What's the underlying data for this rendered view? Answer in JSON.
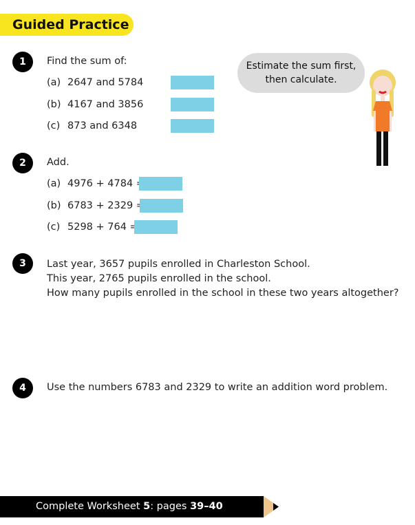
{
  "header": {
    "title": "Guided Practice"
  },
  "speech_bubble": {
    "line1": "Estimate the sum first,",
    "line2": "then calculate."
  },
  "questions": [
    {
      "number": "1",
      "prompt": "Find the sum of:",
      "items": [
        {
          "label": "(a)",
          "text": "2647 and 5784"
        },
        {
          "label": "(b)",
          "text": "4167 and 3856"
        },
        {
          "label": "(c)",
          "text": "873 and 6348"
        }
      ]
    },
    {
      "number": "2",
      "prompt": "Add.",
      "items": [
        {
          "label": "(a)",
          "text": "4976 + 4784 ="
        },
        {
          "label": "(b)",
          "text": "6783 + 2329 ="
        },
        {
          "label": "(c)",
          "text": "5298 + 764 ="
        }
      ]
    },
    {
      "number": "3",
      "lines": [
        "Last year, 3657 pupils enrolled in Charleston School.",
        "This year, 2765 pupils enrolled in the school.",
        "How many pupils enrolled in the school in these two years altogether?"
      ]
    },
    {
      "number": "4",
      "lines": [
        "Use the numbers 6783 and 2329 to write an addition word problem."
      ]
    }
  ],
  "footer": {
    "text1": "Complete Worksheet ",
    "worksheet": "5",
    "text2": ": pages ",
    "pages": "39–40"
  },
  "colors": {
    "banner": "#f9e51f",
    "answer_box": "#7dd0e6",
    "pencil_tip": "#efc58e"
  }
}
